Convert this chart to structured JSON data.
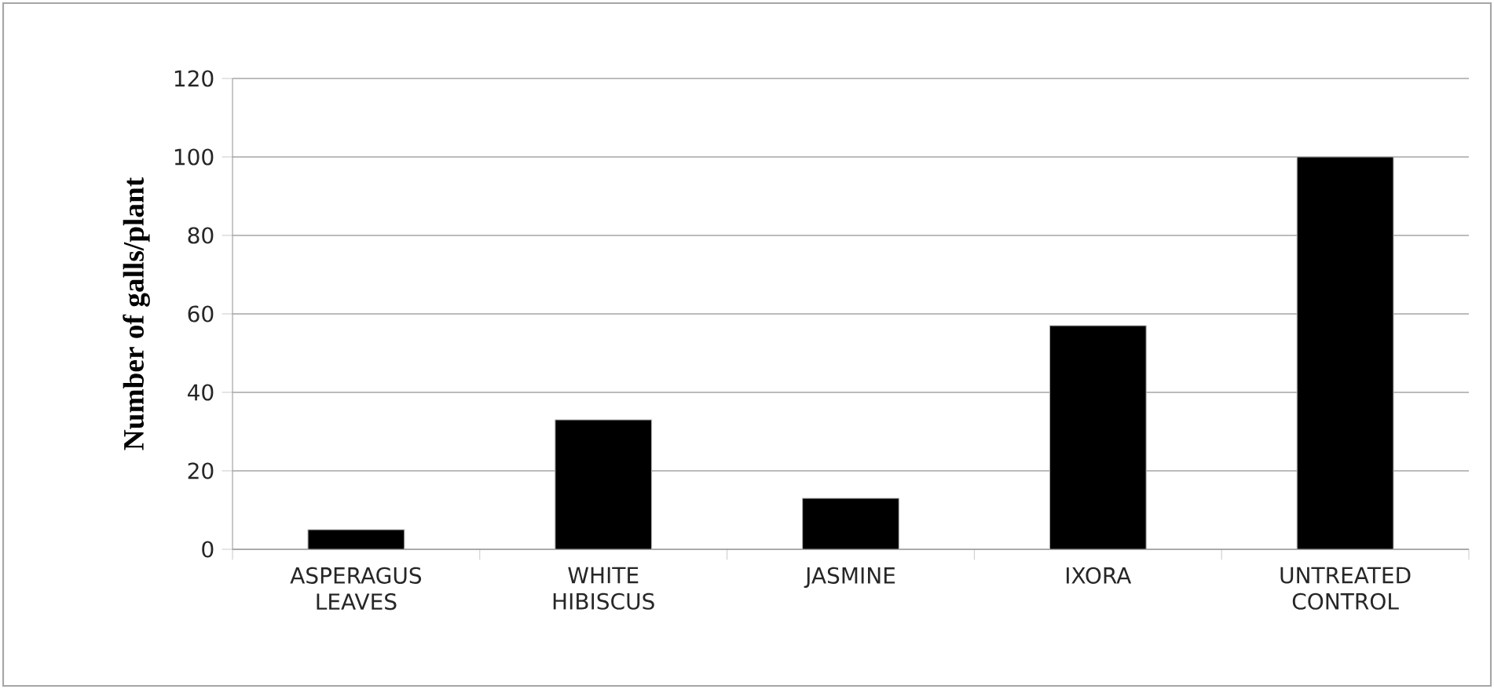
{
  "chart_data": {
    "type": "bar",
    "ylabel": "Number of galls/plant",
    "categories": [
      "ASPERAGUS LEAVES",
      "WHITE HIBISCUS",
      "JASMINE",
      "IXORA",
      "UNTREATED CONTROL"
    ],
    "values": [
      5,
      33,
      13,
      57,
      100
    ],
    "color": "#000000",
    "ylim": [
      0,
      120
    ],
    "yticks": [
      0,
      20,
      40,
      60,
      80,
      100,
      120
    ],
    "grid": "y"
  }
}
